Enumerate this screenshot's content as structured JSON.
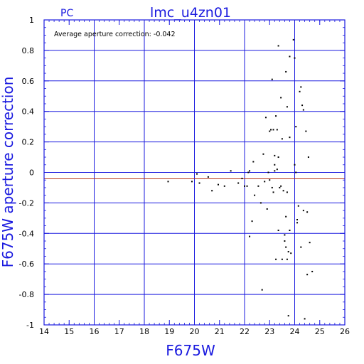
{
  "header": {
    "left_label": "PC",
    "title": "lmc_u4zn01"
  },
  "annotation": "Average aperture correction: -0.042",
  "colors": {
    "axes_and_grid": "#1a1adf",
    "average_line": "#b83a1a",
    "points": "#000000"
  },
  "chart_data": {
    "type": "scatter",
    "xlabel": "F675W",
    "ylabel": "F675W aperture correction",
    "xlim": [
      14,
      26
    ],
    "ylim": [
      -1,
      1
    ],
    "xticks": [
      "14",
      "15",
      "16",
      "17",
      "18",
      "19",
      "20",
      "21",
      "22",
      "23",
      "24",
      "25",
      "26"
    ],
    "yticks": [
      "-1",
      "-0.8",
      "-0.6",
      "-0.4",
      "-0.2",
      "0",
      "0.2",
      "0.4",
      "0.6",
      "0.8",
      "1"
    ],
    "grid": true,
    "average_line": -0.042,
    "zero_line": 0,
    "points": [
      [
        18.95,
        -0.06
      ],
      [
        19.9,
        -0.06
      ],
      [
        20.1,
        -0.01
      ],
      [
        20.2,
        -0.07
      ],
      [
        20.55,
        -0.03
      ],
      [
        20.7,
        -0.12
      ],
      [
        20.95,
        -0.08
      ],
      [
        21.2,
        -0.09
      ],
      [
        21.45,
        0.01
      ],
      [
        21.75,
        -0.07
      ],
      [
        21.9,
        -0.04
      ],
      [
        22.0,
        -0.09
      ],
      [
        22.1,
        -0.09
      ],
      [
        22.15,
        0.0
      ],
      [
        22.2,
        -0.42
      ],
      [
        22.2,
        0.01
      ],
      [
        22.3,
        -0.32
      ],
      [
        22.35,
        0.07
      ],
      [
        22.4,
        -0.15
      ],
      [
        22.55,
        -0.09
      ],
      [
        22.65,
        -0.2
      ],
      [
        22.7,
        -0.77
      ],
      [
        22.75,
        0.12
      ],
      [
        22.8,
        -0.06
      ],
      [
        22.85,
        0.36
      ],
      [
        22.9,
        -0.24
      ],
      [
        22.95,
        0.0
      ],
      [
        23.0,
        -0.05
      ],
      [
        23.0,
        0.27
      ],
      [
        23.05,
        0.28
      ],
      [
        23.1,
        0.61
      ],
      [
        23.1,
        -0.1
      ],
      [
        23.15,
        -0.13
      ],
      [
        23.15,
        0.28
      ],
      [
        23.2,
        0.05
      ],
      [
        23.2,
        0.11
      ],
      [
        23.2,
        0.01
      ],
      [
        23.25,
        0.37
      ],
      [
        23.25,
        -0.57
      ],
      [
        23.3,
        0.28
      ],
      [
        23.3,
        0.02
      ],
      [
        23.35,
        0.83
      ],
      [
        23.35,
        -0.38
      ],
      [
        23.35,
        0.1
      ],
      [
        23.4,
        -0.1
      ],
      [
        23.45,
        -0.09
      ],
      [
        23.45,
        0.49
      ],
      [
        23.5,
        -0.57
      ],
      [
        23.5,
        0.22
      ],
      [
        23.55,
        -0.12
      ],
      [
        23.6,
        -0.45
      ],
      [
        23.6,
        -0.41
      ],
      [
        23.65,
        0.66
      ],
      [
        23.65,
        -0.49
      ],
      [
        23.65,
        -0.29
      ],
      [
        23.7,
        0.43
      ],
      [
        23.7,
        -0.57
      ],
      [
        23.7,
        -0.13
      ],
      [
        23.75,
        -0.52
      ],
      [
        23.75,
        -0.94
      ],
      [
        23.8,
        0.76
      ],
      [
        23.8,
        -0.38
      ],
      [
        23.8,
        0.23
      ],
      [
        23.85,
        -0.53
      ],
      [
        23.95,
        0.87
      ],
      [
        24.0,
        0.75
      ],
      [
        24.0,
        0.05
      ],
      [
        24.05,
        0.3
      ],
      [
        24.05,
        0.0
      ],
      [
        24.1,
        -0.33
      ],
      [
        24.1,
        -0.31
      ],
      [
        24.15,
        -0.22
      ],
      [
        24.2,
        0.53
      ],
      [
        24.25,
        0.56
      ],
      [
        24.25,
        -0.49
      ],
      [
        24.3,
        0.44
      ],
      [
        24.35,
        0.41
      ],
      [
        24.35,
        -0.25
      ],
      [
        24.4,
        -0.96
      ],
      [
        24.45,
        0.27
      ],
      [
        24.5,
        -0.26
      ],
      [
        24.5,
        -0.67
      ],
      [
        24.55,
        0.1
      ],
      [
        24.6,
        -0.46
      ],
      [
        24.7,
        -0.65
      ]
    ]
  }
}
